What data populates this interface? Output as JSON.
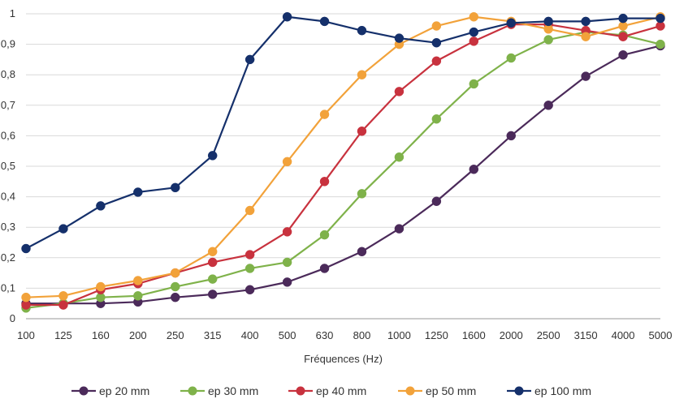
{
  "chart_data": {
    "type": "line",
    "title": "",
    "xlabel": "Fréquences (Hz)",
    "ylabel": "",
    "ylim": [
      0,
      1
    ],
    "yticks": [
      "0",
      "0,1",
      "0,2",
      "0,3",
      "0,4",
      "0,5",
      "0,6",
      "0,7",
      "0,8",
      "0,9",
      "1"
    ],
    "categories": [
      "100",
      "125",
      "160",
      "200",
      "250",
      "315",
      "400",
      "500",
      "630",
      "800",
      "1000",
      "1250",
      "1600",
      "2000",
      "2500",
      "3150",
      "4000",
      "5000"
    ],
    "grid": true,
    "legend": "bottom",
    "series": [
      {
        "name": "ep 20 mm",
        "color": "#4b2a5a",
        "values": [
          0.05,
          0.05,
          0.05,
          0.055,
          0.07,
          0.08,
          0.095,
          0.12,
          0.165,
          0.22,
          0.295,
          0.385,
          0.49,
          0.6,
          0.7,
          0.795,
          0.865,
          0.895
        ]
      },
      {
        "name": "ep 30 mm",
        "color": "#7fb24a",
        "values": [
          0.035,
          0.05,
          0.07,
          0.075,
          0.105,
          0.13,
          0.165,
          0.185,
          0.275,
          0.41,
          0.53,
          0.655,
          0.77,
          0.855,
          0.915,
          0.94,
          0.93,
          0.9
        ]
      },
      {
        "name": "ep 40 mm",
        "color": "#c8323e",
        "values": [
          0.045,
          0.045,
          0.095,
          0.115,
          0.15,
          0.185,
          0.21,
          0.285,
          0.45,
          0.615,
          0.745,
          0.845,
          0.91,
          0.965,
          0.965,
          0.945,
          0.925,
          0.96
        ]
      },
      {
        "name": "ep 50 mm",
        "color": "#f2a23a",
        "values": [
          0.07,
          0.075,
          0.105,
          0.125,
          0.15,
          0.22,
          0.355,
          0.515,
          0.67,
          0.8,
          0.9,
          0.96,
          0.99,
          0.975,
          0.95,
          0.925,
          0.96,
          0.99
        ]
      },
      {
        "name": "ep 100 mm",
        "color": "#15306b",
        "values": [
          0.23,
          0.295,
          0.37,
          0.415,
          0.43,
          0.535,
          0.85,
          0.99,
          0.975,
          0.945,
          0.92,
          0.905,
          0.94,
          0.97,
          0.975,
          0.975,
          0.985,
          0.985
        ]
      }
    ]
  }
}
